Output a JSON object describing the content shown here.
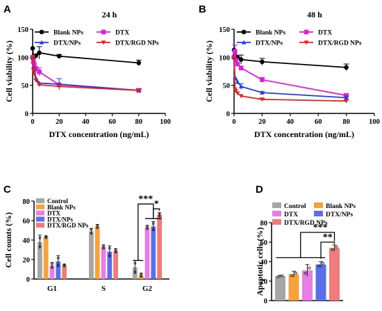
{
  "chart_data": [
    {
      "panel": "A",
      "type": "line",
      "title": "24 h",
      "xlabel": "DTX concentration (ng/mL)",
      "ylabel": "Cell viability (%)",
      "xlim": [
        0,
        100
      ],
      "ylim": [
        0,
        150
      ],
      "xticks": [
        "0",
        "20",
        "40",
        "60",
        "80",
        "100"
      ],
      "yticks": [
        "0",
        "50",
        "100",
        "150"
      ],
      "legend_position": "top",
      "series": [
        {
          "name": "Blank NPs",
          "color": "#000000",
          "marker": "circle",
          "x": [
            0,
            0.625,
            1.25,
            2.5,
            5,
            20,
            80
          ],
          "y": [
            116,
            100,
            101,
            103,
            108,
            102,
            90
          ],
          "err": [
            0,
            0,
            0,
            0,
            11,
            3,
            5
          ]
        },
        {
          "name": "DTX",
          "color": "#e01ee0",
          "marker": "square",
          "x": [
            0,
            0.625,
            1.25,
            2.5,
            5,
            20,
            80
          ],
          "y": [
            100,
            92,
            87,
            80,
            74,
            51,
            41
          ],
          "err": [
            0,
            0,
            0,
            0,
            7,
            0,
            3
          ]
        },
        {
          "name": "DTX/NPs",
          "color": "#1f3ee8",
          "marker": "triangle",
          "x": [
            0,
            0.625,
            1.25,
            2.5,
            5,
            20,
            80
          ],
          "y": [
            100,
            83,
            78,
            63,
            54,
            52,
            41
          ],
          "err": [
            0,
            0,
            0,
            0,
            0,
            10,
            3
          ]
        },
        {
          "name": "DTX/RGD NPs",
          "color": "#e8201e",
          "marker": "triangle-down",
          "x": [
            0,
            0.625,
            1.25,
            2.5,
            5,
            20,
            80
          ],
          "y": [
            100,
            77,
            71,
            59,
            51,
            48,
            41
          ],
          "err": [
            0,
            0,
            0,
            0,
            0,
            3,
            2
          ]
        }
      ]
    },
    {
      "panel": "B",
      "type": "line",
      "title": "48 h",
      "xlabel": "DTX concentration (ng/mL)",
      "ylabel": "Cell viability (%)",
      "xlim": [
        0,
        100
      ],
      "ylim": [
        0,
        150
      ],
      "xticks": [
        "0",
        "20",
        "40",
        "60",
        "80",
        "100"
      ],
      "yticks": [
        "0",
        "50",
        "100",
        "150"
      ],
      "legend_position": "top",
      "series": [
        {
          "name": "Blank NPs",
          "color": "#000000",
          "marker": "circle",
          "x": [
            0,
            0.625,
            1.25,
            2.5,
            5,
            20,
            80
          ],
          "y": [
            113,
            103,
            101,
            100,
            96,
            92,
            82
          ],
          "err": [
            0,
            0,
            0,
            0,
            8,
            6,
            6
          ]
        },
        {
          "name": "DTX",
          "color": "#e01ee0",
          "marker": "square",
          "x": [
            0,
            0.625,
            1.25,
            2.5,
            5,
            20,
            80
          ],
          "y": [
            100,
            110,
            95,
            88,
            81,
            60,
            32
          ],
          "err": [
            0,
            12,
            0,
            0,
            0,
            4,
            3
          ]
        },
        {
          "name": "DTX/NPs",
          "color": "#1f3ee8",
          "marker": "triangle",
          "x": [
            0,
            0.625,
            1.25,
            2.5,
            5,
            20,
            80
          ],
          "y": [
            100,
            64,
            62,
            56,
            48,
            37,
            28
          ],
          "err": [
            0,
            0,
            0,
            0,
            5,
            2,
            3
          ]
        },
        {
          "name": "DTX/RGD NPs",
          "color": "#e8201e",
          "marker": "triangle-down",
          "x": [
            0,
            0.625,
            1.25,
            2.5,
            5,
            20,
            80
          ],
          "y": [
            100,
            43,
            40,
            36,
            31,
            25,
            22
          ],
          "err": [
            0,
            0,
            0,
            0,
            0,
            2,
            2
          ]
        }
      ]
    },
    {
      "panel": "C",
      "type": "bar",
      "ylabel": "Cell counts (%)",
      "ylim": [
        0,
        80
      ],
      "yticks": [
        "0",
        "20",
        "40",
        "60",
        "80"
      ],
      "categories": [
        "G1",
        "S",
        "G2"
      ],
      "legend_position": "top-left",
      "series": [
        {
          "name": "Control",
          "color": "#a6a6a6",
          "values": [
            38,
            49,
            12
          ],
          "err": [
            7,
            3,
            7
          ]
        },
        {
          "name": "Blank NPs",
          "color": "#f7a23c",
          "values": [
            43,
            54,
            4
          ],
          "err": [
            1,
            2,
            2
          ]
        },
        {
          "name": "DTX",
          "color": "#e67ee6",
          "values": [
            14,
            33,
            53
          ],
          "err": [
            3,
            2,
            2
          ]
        },
        {
          "name": "DTX/NPs",
          "color": "#5b70e8",
          "values": [
            18,
            28,
            54
          ],
          "err": [
            6,
            6,
            5
          ]
        },
        {
          "name": "DTX/RGD NPs",
          "color": "#f07b7b",
          "values": [
            14,
            29,
            66
          ],
          "err": [
            1,
            2,
            2
          ]
        }
      ],
      "annotations": [
        "***",
        "*"
      ]
    },
    {
      "panel": "D",
      "type": "bar",
      "ylabel": "Apoptotic cells (%)",
      "ylim": [
        0,
        80
      ],
      "yticks": [
        "0",
        "20",
        "40",
        "60",
        "80"
      ],
      "categories": [
        "Control",
        "Blank NPs",
        "DTX",
        "DTX/NPs",
        "DTX/RGD NPs"
      ],
      "legend_position": "top",
      "series": [
        {
          "name": "Apoptotic cells",
          "colors": [
            "#a6a6a6",
            "#f7a23c",
            "#e67ee6",
            "#5b70e8",
            "#f07b7b"
          ],
          "values": [
            25,
            27,
            31,
            37,
            54
          ],
          "err": [
            1,
            3,
            6,
            3,
            3
          ]
        }
      ],
      "annotations": [
        "***",
        "**"
      ]
    }
  ]
}
